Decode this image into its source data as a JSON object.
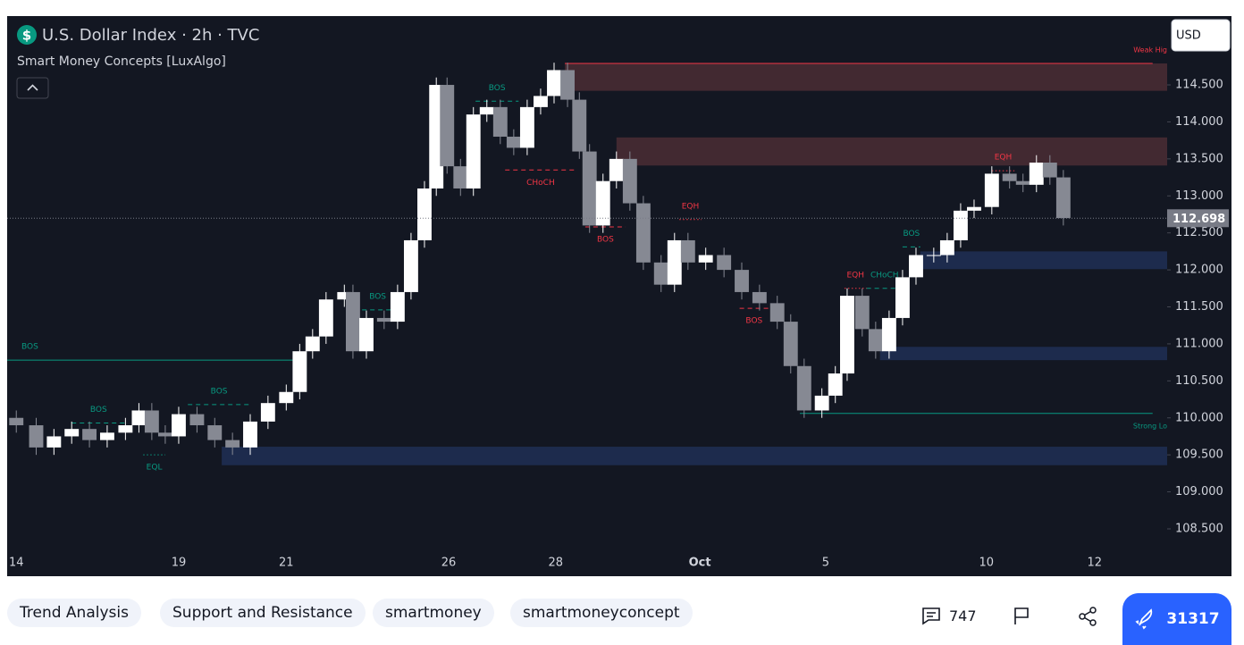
{
  "header": {
    "title": "U.S. Dollar Index · 2h · TVC",
    "indicator": "Smart Money Concepts [LuxAlgo]",
    "currency": "USD"
  },
  "chart_data": {
    "type": "candlestick",
    "x": [
      0,
      0.37,
      0.7,
      1.03,
      1.36,
      1.69,
      2.03,
      2.28,
      2.52,
      2.77,
      3.02,
      3.36,
      3.69,
      4.02,
      4.35,
      4.68,
      5.02,
      5.27,
      5.51,
      5.76,
      6.1,
      6.26,
      6.51,
      6.84,
      7.09,
      7.34,
      7.59,
      7.81,
      8.01,
      8.26,
      8.5,
      8.75,
      9,
      9.25,
      9.5,
      9.75,
      10,
      10.25,
      10.47,
      10.66,
      10.91,
      11.16,
      11.41,
      11.66,
      11.99,
      12.24,
      12.49,
      12.82,
      13.16,
      13.49,
      13.82,
      14.15,
      14.4,
      14.65,
      14.98,
      15.23,
      15.45,
      15.73,
      15.98,
      16.23,
      16.48,
      16.73,
      17.06,
      17.31,
      17.56,
      17.81,
      18.14,
      18.47,
      18.72,
      18.97,
      19.22,
      19.47
    ],
    "open": [
      110.0,
      109.9,
      109.6,
      109.75,
      109.85,
      109.7,
      109.8,
      109.9,
      110.1,
      109.8,
      109.75,
      110.05,
      109.9,
      109.7,
      109.6,
      109.95,
      110.2,
      110.35,
      110.9,
      111.1,
      111.6,
      111.7,
      110.9,
      111.35,
      111.3,
      111.7,
      112.4,
      113.1,
      114.5,
      113.4,
      113.1,
      114.1,
      114.2,
      113.8,
      113.65,
      114.2,
      114.35,
      114.7,
      114.3,
      113.6,
      112.6,
      113.2,
      113.5,
      112.9,
      112.1,
      111.8,
      112.4,
      112.1,
      112.2,
      112.0,
      111.7,
      111.55,
      111.3,
      110.7,
      110.1,
      110.3,
      110.6,
      111.65,
      111.2,
      110.9,
      111.35,
      111.9,
      112.2,
      112.2,
      112.4,
      112.8,
      112.85,
      113.3,
      113.2,
      113.15,
      113.45,
      113.25
    ],
    "high": [
      110.1,
      110.0,
      109.85,
      109.95,
      109.95,
      109.9,
      110.0,
      110.2,
      110.2,
      109.9,
      110.15,
      110.15,
      110.0,
      109.8,
      110.05,
      110.3,
      110.45,
      111.0,
      111.2,
      111.7,
      111.8,
      111.8,
      111.45,
      111.45,
      111.8,
      112.5,
      113.2,
      114.6,
      114.6,
      113.5,
      114.2,
      114.3,
      114.3,
      113.9,
      114.3,
      114.45,
      114.8,
      114.8,
      114.4,
      113.7,
      113.3,
      113.6,
      113.6,
      113.0,
      112.2,
      112.5,
      112.5,
      112.3,
      112.3,
      112.1,
      111.8,
      111.65,
      111.4,
      110.8,
      110.4,
      110.7,
      111.75,
      111.75,
      111.3,
      111.45,
      112.0,
      112.3,
      112.3,
      112.5,
      112.9,
      112.95,
      113.4,
      113.4,
      113.3,
      113.55,
      113.55,
      113.35
    ],
    "low": [
      109.8,
      109.5,
      109.5,
      109.65,
      109.6,
      109.6,
      109.7,
      109.8,
      109.7,
      109.65,
      109.65,
      109.8,
      109.6,
      109.5,
      109.5,
      109.85,
      110.1,
      110.25,
      110.8,
      111.0,
      111.5,
      110.8,
      110.8,
      111.2,
      111.2,
      111.6,
      112.3,
      113.0,
      113.3,
      113.0,
      113.0,
      114.0,
      113.7,
      113.55,
      113.55,
      114.1,
      114.25,
      114.2,
      113.5,
      112.5,
      112.5,
      113.1,
      112.8,
      112.0,
      111.7,
      111.7,
      112.0,
      112.0,
      111.9,
      111.6,
      111.45,
      111.2,
      110.6,
      110.0,
      110.0,
      110.2,
      110.5,
      111.1,
      110.8,
      110.8,
      111.25,
      111.8,
      112.1,
      112.1,
      112.3,
      112.7,
      112.75,
      113.1,
      113.05,
      113.05,
      113.15,
      112.6
    ],
    "close": [
      109.9,
      109.6,
      109.75,
      109.85,
      109.7,
      109.8,
      109.9,
      110.1,
      109.8,
      109.75,
      110.05,
      109.9,
      109.7,
      109.6,
      109.95,
      110.2,
      110.35,
      110.9,
      111.1,
      111.6,
      111.7,
      110.9,
      111.35,
      111.3,
      111.7,
      112.4,
      113.1,
      114.5,
      113.4,
      113.1,
      114.1,
      114.2,
      113.8,
      113.65,
      114.2,
      114.35,
      114.7,
      114.3,
      113.6,
      112.6,
      113.2,
      113.5,
      112.9,
      112.1,
      111.8,
      112.4,
      112.1,
      112.2,
      112.0,
      111.7,
      111.55,
      111.3,
      110.7,
      110.1,
      110.3,
      110.6,
      111.65,
      111.2,
      110.9,
      111.35,
      111.9,
      112.2,
      112.2,
      112.4,
      112.8,
      112.85,
      113.3,
      113.2,
      113.15,
      113.45,
      113.25,
      112.7
    ],
    "up_color": "#ffffff",
    "down_color": "#868993",
    "xlim": [
      -0.17,
      21.4
    ],
    "ylim": [
      107.86,
      115.43
    ],
    "xticks": [
      {
        "value": 0,
        "label": "14"
      },
      {
        "value": 3.02,
        "label": "19"
      },
      {
        "value": 5.02,
        "label": "21"
      },
      {
        "value": 8.04,
        "label": "26"
      },
      {
        "value": 10.03,
        "label": "28"
      },
      {
        "value": 12.71,
        "label": "Oct"
      },
      {
        "value": 15.05,
        "label": "5"
      },
      {
        "value": 18.04,
        "label": "10"
      },
      {
        "value": 20.05,
        "label": "12"
      }
    ],
    "yticks": [
      {
        "value": 108.5,
        "label": "108.500"
      },
      {
        "value": 109,
        "label": "109.000"
      },
      {
        "value": 109.5,
        "label": "109.500"
      },
      {
        "value": 110,
        "label": "110.000"
      },
      {
        "value": 110.5,
        "label": "110.500"
      },
      {
        "value": 111,
        "label": "111.000"
      },
      {
        "value": 111.5,
        "label": "111.500"
      },
      {
        "value": 112,
        "label": "112.000"
      },
      {
        "value": 112.5,
        "label": "112.500"
      },
      {
        "value": 113,
        "label": "113.000"
      },
      {
        "value": 113.5,
        "label": "113.500"
      },
      {
        "value": 114,
        "label": "114.000"
      },
      {
        "value": 114.5,
        "label": "114.500"
      }
    ],
    "grid": false,
    "last_price": 112.698,
    "zones": [
      {
        "x0": 10.2,
        "x1": 21.4,
        "y0": 114.42,
        "y1": 114.79,
        "color": "#452a33"
      },
      {
        "x0": 11.16,
        "x1": 21.4,
        "y0": 113.41,
        "y1": 113.79,
        "color": "#452a33"
      },
      {
        "x0": 16.81,
        "x1": 21.4,
        "y0": 112.01,
        "y1": 112.25,
        "color": "#1e2c50"
      },
      {
        "x0": 16.06,
        "x1": 21.4,
        "y0": 110.78,
        "y1": 110.96,
        "color": "#1e2c50"
      },
      {
        "x0": 3.82,
        "x1": 21.4,
        "y0": 109.36,
        "y1": 109.61,
        "color": "#1e2c50"
      }
    ],
    "structures": [
      {
        "label": "BOS",
        "x0": -0.17,
        "x1": 5.27,
        "price": 110.78,
        "color": "#089981",
        "style": "solid",
        "side": "above"
      },
      {
        "label": "BOS",
        "x0": 1.03,
        "x1": 2.03,
        "price": 109.93,
        "color": "#089981",
        "style": "dashed",
        "side": "above"
      },
      {
        "label": "EQL",
        "x0": 2.36,
        "x1": 2.77,
        "price": 109.5,
        "color": "#089981",
        "style": "dotted",
        "side": "below"
      },
      {
        "label": "BOS",
        "x0": 3.19,
        "x1": 4.35,
        "price": 110.18,
        "color": "#089981",
        "style": "dashed",
        "side": "above"
      },
      {
        "label": "BOS",
        "x0": 6.43,
        "x1": 7.01,
        "price": 111.46,
        "color": "#089981",
        "style": "dashed",
        "side": "above"
      },
      {
        "label": "BOS",
        "x0": 8.54,
        "x1": 9.34,
        "price": 114.28,
        "color": "#089981",
        "style": "dashed",
        "side": "above"
      },
      {
        "label": "CHoCH",
        "x0": 9.09,
        "x1": 10.41,
        "price": 113.35,
        "color": "#f23645",
        "style": "dashed",
        "side": "below"
      },
      {
        "label": "BOS",
        "x0": 10.58,
        "x1": 11.33,
        "price": 112.58,
        "color": "#f23645",
        "style": "dashed",
        "side": "below"
      },
      {
        "label": "EQH",
        "x0": 12.33,
        "x1": 12.74,
        "price": 112.68,
        "color": "#f23645",
        "style": "dotted",
        "side": "above"
      },
      {
        "label": "BOS",
        "x0": 13.45,
        "x1": 13.99,
        "price": 111.48,
        "color": "#f23645",
        "style": "dashed",
        "side": "below"
      },
      {
        "label": "EQH",
        "x0": 15.4,
        "x1": 15.81,
        "price": 111.75,
        "color": "#f23645",
        "style": "dotted",
        "side": "above"
      },
      {
        "label": "CHoCH",
        "x0": 15.81,
        "x1": 16.48,
        "price": 111.75,
        "color": "#089981",
        "style": "dashed",
        "side": "above"
      },
      {
        "label": "BOS",
        "x0": 16.48,
        "x1": 16.81,
        "price": 112.31,
        "color": "#089981",
        "style": "dashed",
        "side": "above"
      },
      {
        "label": "EQH",
        "x0": 18.14,
        "x1": 18.56,
        "price": 113.34,
        "color": "#f23645",
        "style": "dotted",
        "side": "above"
      },
      {
        "label": "Strong Lo",
        "x0": 14.57,
        "x1": 21.13,
        "price": 110.06,
        "color": "#089981",
        "style": "solid",
        "side": "end-below"
      },
      {
        "label": "Weak Hig",
        "x0": 10.2,
        "x1": 21.13,
        "price": 114.79,
        "color": "#f23645",
        "style": "solid",
        "side": "end-above"
      }
    ]
  },
  "tags": [
    "Trend Analysis",
    "Support and Resistance",
    "smartmoney",
    "smartmoneyconcept"
  ],
  "actions": {
    "comments": 747,
    "boosts": 31317
  }
}
